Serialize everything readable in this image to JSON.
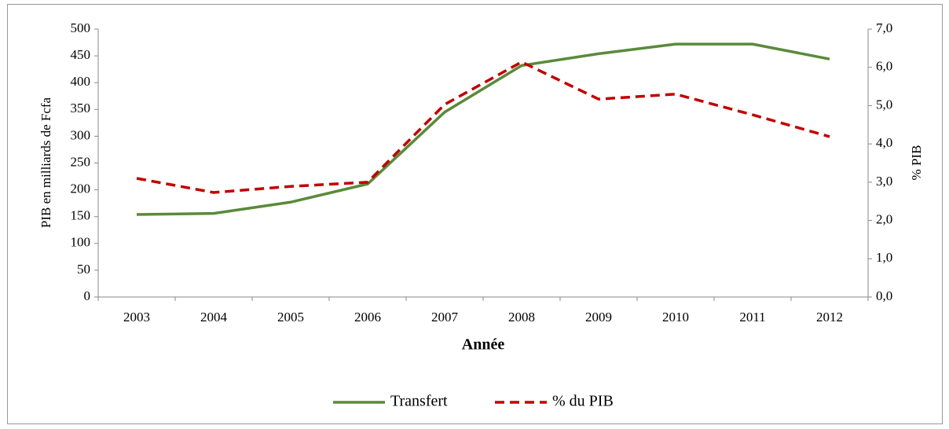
{
  "chart_data": {
    "type": "line",
    "categories": [
      "2003",
      "2004",
      "2005",
      "2006",
      "2007",
      "2008",
      "2009",
      "2010",
      "2011",
      "2012"
    ],
    "series": [
      {
        "name": "Transfert",
        "color": "#5a8a3a",
        "values": [
          154,
          156,
          177,
          211,
          345,
          432,
          454,
          472,
          472,
          444
        ]
      },
      {
        "name": "% du PIB",
        "color": "#c00000",
        "axis": "y2",
        "dashed": true,
        "values": [
          3.1,
          2.73,
          2.89,
          3.0,
          5.03,
          6.14,
          5.17,
          5.3,
          4.76,
          4.19
        ]
      }
    ],
    "ylabel": "PIB en milliards de Fcfa",
    "y2label": "% PIB",
    "xlabel": "Année",
    "ylim": [
      0,
      500
    ],
    "yticks": [
      0,
      50,
      100,
      150,
      200,
      250,
      300,
      350,
      400,
      450,
      500
    ],
    "y2lim": [
      0,
      7
    ],
    "y2ticks": [
      {
        "value": 0,
        "label": "0,0"
      },
      {
        "value": 1,
        "label": "1,0"
      },
      {
        "value": 2,
        "label": "2,0"
      },
      {
        "value": 3,
        "label": "3,0"
      },
      {
        "value": 4,
        "label": "4,0"
      },
      {
        "value": 5,
        "label": "5,0"
      },
      {
        "value": 6,
        "label": "6,0"
      },
      {
        "value": 7,
        "label": "7,0"
      }
    ],
    "legend": "bottom"
  }
}
